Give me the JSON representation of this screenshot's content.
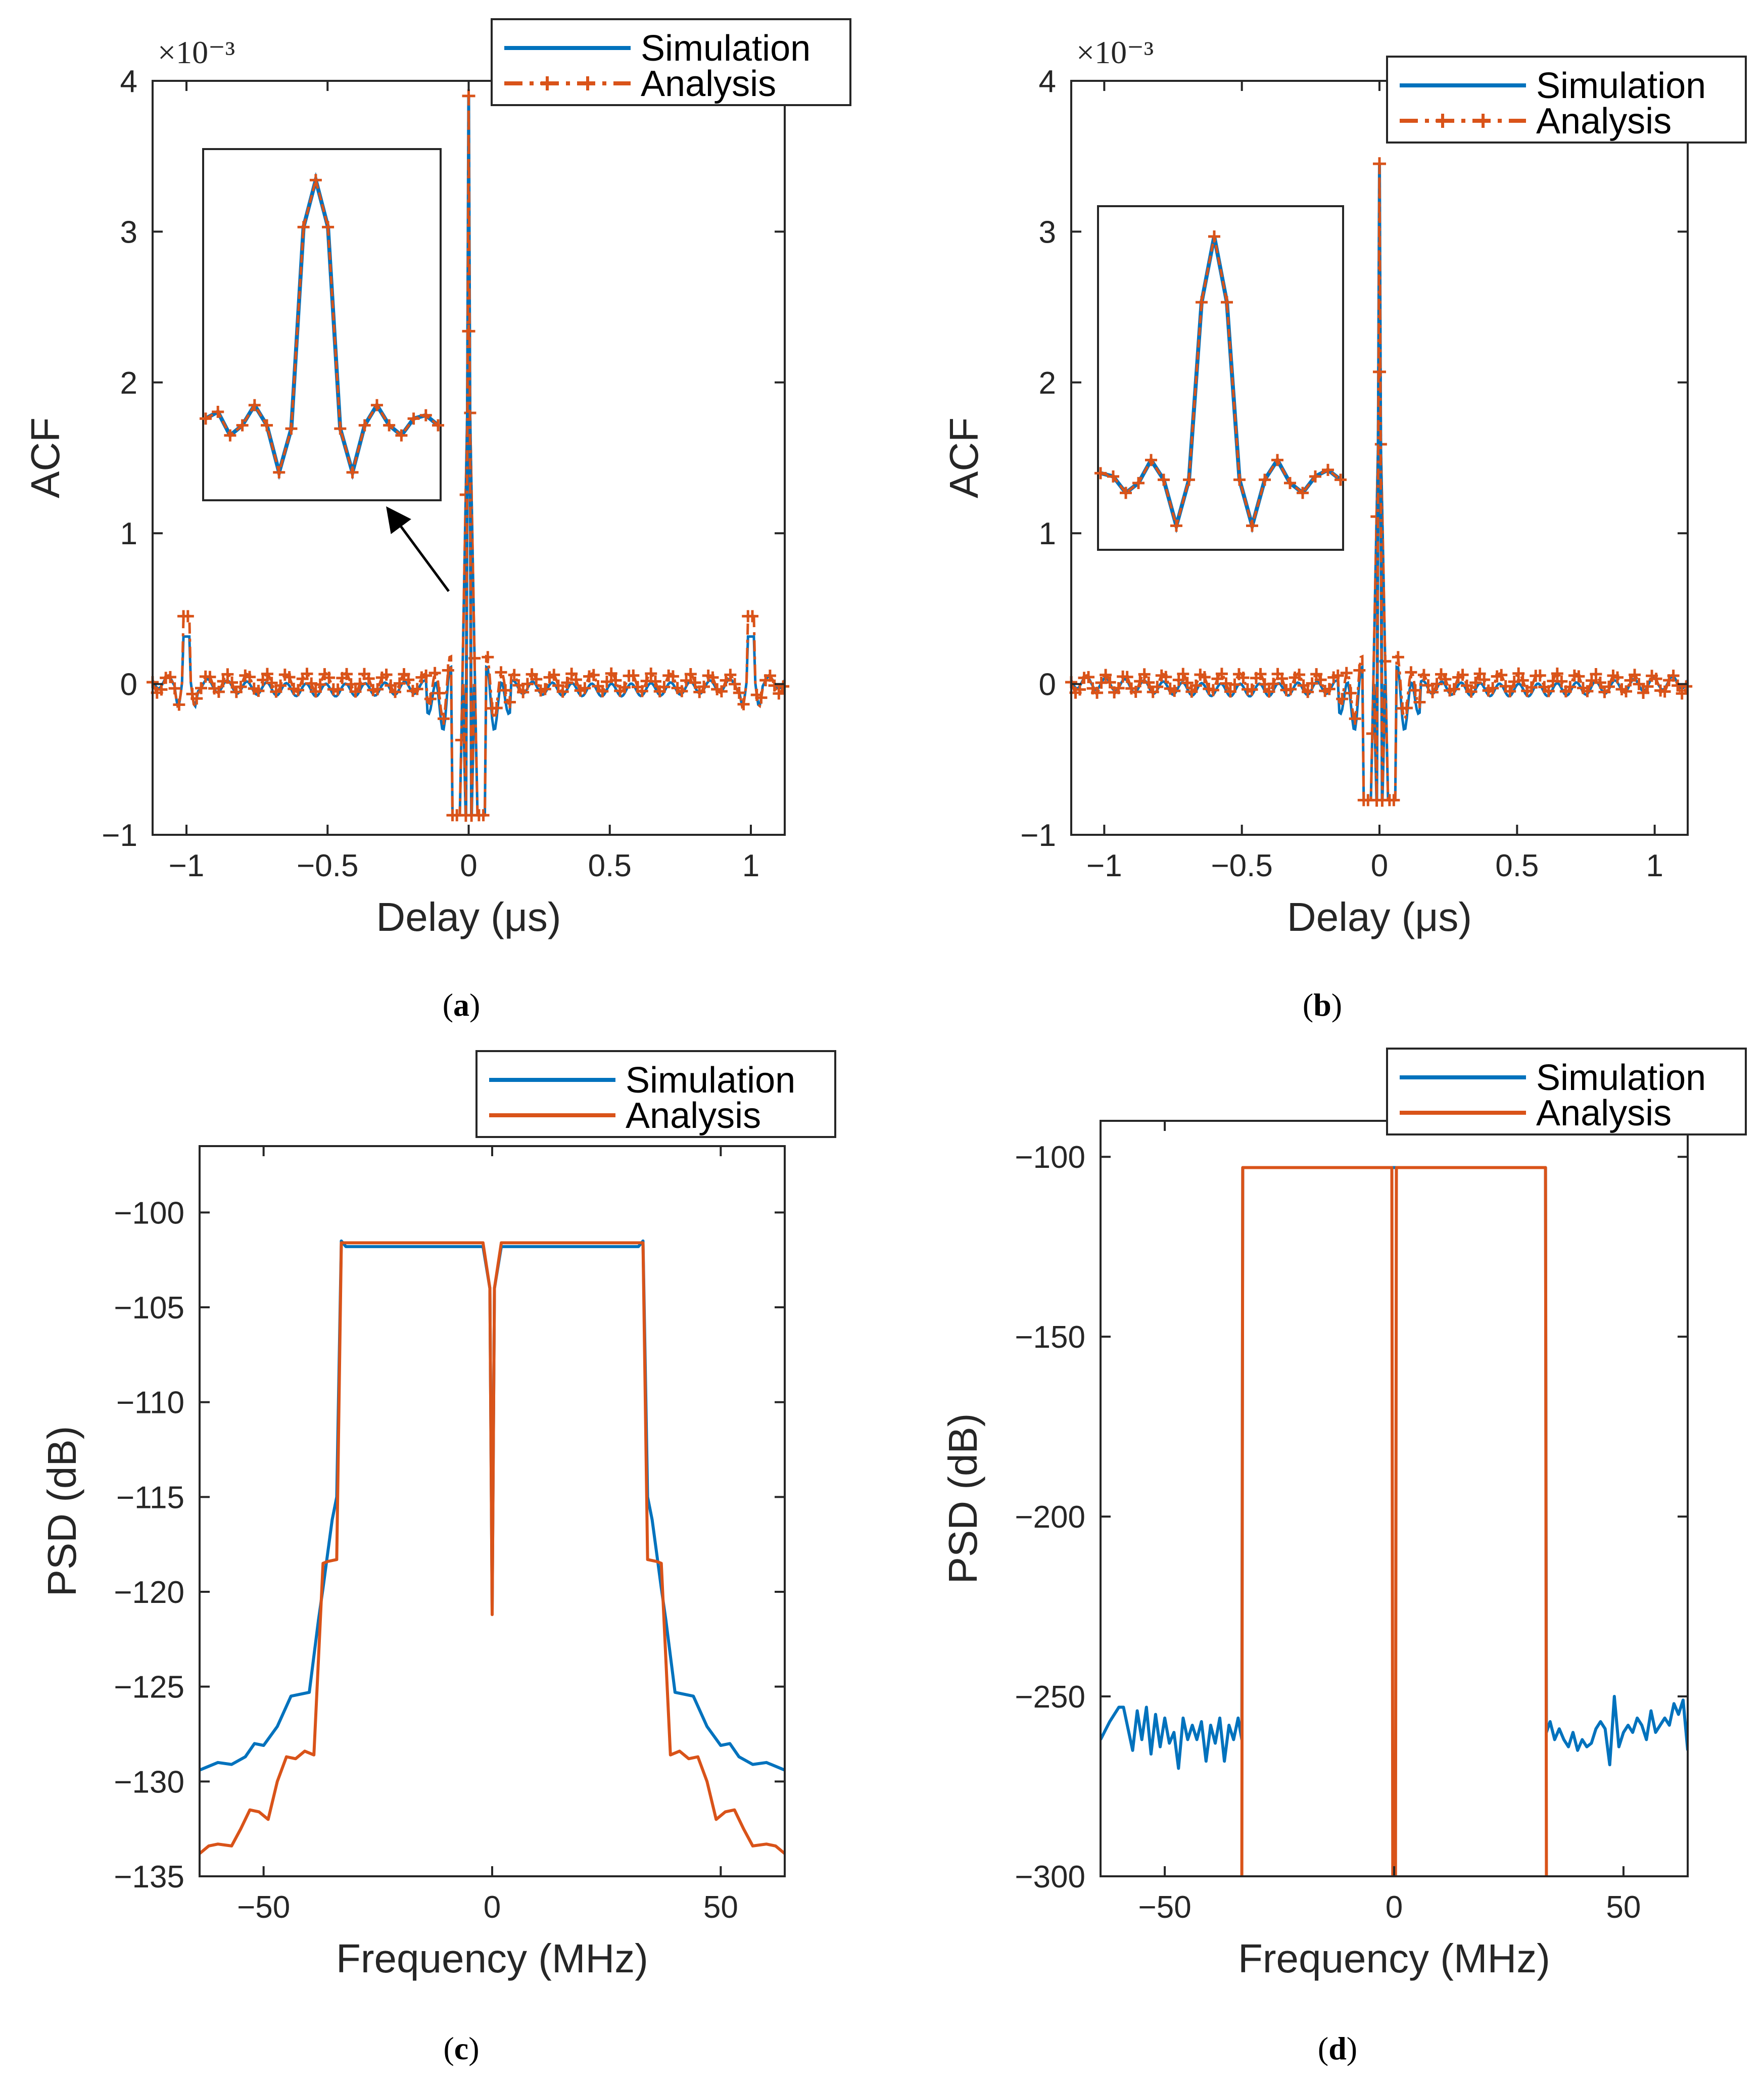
{
  "chart_data": [
    {
      "id": "a",
      "type": "line",
      "panel_label": "a",
      "xlabel": "Delay (μs)",
      "ylabel": "ACF",
      "y_exponent": "×10⁻³",
      "xlim": [
        -1.12,
        1.12
      ],
      "ylim": [
        -1,
        4
      ],
      "xticks": [
        -1,
        -0.5,
        0,
        0.5,
        1
      ],
      "xtick_labels": [
        "−1",
        "−0.5",
        "0",
        "0.5",
        "1"
      ],
      "yticks": [
        -1,
        0,
        1,
        2,
        3,
        4
      ],
      "ytick_labels": [
        "−1",
        "0",
        "1",
        "2",
        "3",
        "4"
      ],
      "legend": [
        "Simulation",
        "Analysis"
      ],
      "legend_position": "top-right",
      "main_peak": 3.9,
      "side_peak": 0.45,
      "side_peak_positions": [
        -1,
        1
      ],
      "first_null": -0.87,
      "inset_values": [
        0.45,
        0.55,
        0.2,
        0.35,
        0.65,
        0.35,
        -0.35,
        0.3,
        3.3,
        4.0,
        3.3,
        0.3,
        -0.35,
        0.35,
        0.65,
        0.35,
        0.2,
        0.45,
        0.5,
        0.35
      ],
      "series": [
        {
          "name": "Simulation",
          "color": "#0072BD",
          "style": "solid"
        },
        {
          "name": "Analysis",
          "color": "#D95319",
          "style": "dash-dot with + markers"
        }
      ]
    },
    {
      "id": "b",
      "type": "line",
      "panel_label": "b",
      "xlabel": "Delay (μs)",
      "ylabel": "ACF",
      "y_exponent": "×10⁻³",
      "xlim": [
        -1.12,
        1.12
      ],
      "ylim": [
        -1,
        4
      ],
      "xticks": [
        -1,
        -0.5,
        0,
        0.5,
        1
      ],
      "xtick_labels": [
        "−1",
        "−0.5",
        "0",
        "0.5",
        "1"
      ],
      "yticks": [
        -1,
        0,
        1,
        2,
        3,
        4
      ],
      "ytick_labels": [
        "−1",
        "0",
        "1",
        "2",
        "3",
        "4"
      ],
      "legend": [
        "Simulation",
        "Analysis"
      ],
      "legend_position": "top-right",
      "main_peak": 3.45,
      "side_peak": 0,
      "side_peak_positions": [],
      "first_null": -0.77,
      "inset_values": [
        0.4,
        0.35,
        0.1,
        0.25,
        0.6,
        0.3,
        -0.4,
        0.3,
        3.0,
        4.0,
        3.0,
        0.3,
        -0.4,
        0.3,
        0.6,
        0.25,
        0.1,
        0.35,
        0.45,
        0.3
      ],
      "series": [
        {
          "name": "Simulation",
          "color": "#0072BD",
          "style": "solid"
        },
        {
          "name": "Analysis",
          "color": "#D95319",
          "style": "dash-dot with + markers"
        }
      ]
    },
    {
      "id": "c",
      "type": "line",
      "panel_label": "c",
      "xlabel": "Frequency (MHz)",
      "ylabel": "PSD (dB)",
      "xlim": [
        -64,
        64
      ],
      "ylim": [
        -135,
        -96.5
      ],
      "xticks": [
        -50,
        0,
        50
      ],
      "xtick_labels": [
        "−50",
        "0",
        "50"
      ],
      "yticks": [
        -135,
        -130,
        -125,
        -120,
        -115,
        -110,
        -105,
        -100
      ],
      "ytick_labels": [
        "−135",
        "−130",
        "−125",
        "−120",
        "−115",
        "−110",
        "−105",
        "−100"
      ],
      "legend": [
        "Simulation",
        "Analysis"
      ],
      "legend_position": "top-right",
      "series": [
        {
          "name": "Simulation",
          "color": "#0072BD",
          "x": [
            -64,
            -60,
            -57,
            -54,
            -52,
            -50,
            -47,
            -44,
            -42,
            -40,
            -38,
            -37,
            -36,
            -35,
            -34,
            -33,
            -32,
            -20,
            -2,
            -0.5,
            0,
            0.5,
            2,
            20,
            32,
            33,
            34,
            35,
            36,
            37,
            38,
            40,
            42,
            44,
            47,
            50,
            52,
            54,
            57,
            60,
            64
          ],
          "y": [
            -129.4,
            -129.0,
            -129.1,
            -128.7,
            -128.0,
            -128.1,
            -127.1,
            -125.5,
            -125.4,
            -125.3,
            -121.5,
            -119.8,
            -118.0,
            -116.2,
            -115.0,
            -101.5,
            -101.8,
            -101.8,
            -101.8,
            -104,
            -121,
            -104,
            -101.8,
            -101.8,
            -101.8,
            -101.5,
            -115.0,
            -116.2,
            -118.0,
            -119.8,
            -121.5,
            -125.3,
            -125.4,
            -125.5,
            -127.1,
            -128.1,
            -128.0,
            -128.7,
            -129.1,
            -129.0,
            -129.4
          ]
        },
        {
          "name": "Analysis",
          "color": "#D95319",
          "x": [
            -64,
            -62,
            -60,
            -57,
            -55,
            -53,
            -51,
            -49,
            -47,
            -45,
            -43,
            -41,
            -39,
            -37,
            -36,
            -34,
            -33,
            -32,
            -20,
            -2,
            -0.5,
            0,
            0.5,
            2,
            20,
            32,
            33,
            34,
            36,
            37,
            39,
            41,
            43,
            45,
            47,
            49,
            51,
            53,
            55,
            57,
            60,
            62,
            64
          ],
          "y": [
            -133.8,
            -133.4,
            -133.3,
            -133.4,
            -132.5,
            -131.5,
            -131.6,
            -132.0,
            -130.0,
            -128.7,
            -128.8,
            -128.4,
            -128.6,
            -118.5,
            -118.4,
            -118.3,
            -101.6,
            -101.6,
            -101.6,
            -101.6,
            -104,
            -121.2,
            -104,
            -101.6,
            -101.6,
            -101.6,
            -101.6,
            -118.3,
            -118.4,
            -118.5,
            -128.6,
            -128.4,
            -128.8,
            -128.7,
            -130.0,
            -132.0,
            -131.6,
            -131.5,
            -132.5,
            -133.4,
            -133.3,
            -133.4,
            -133.8
          ]
        }
      ]
    },
    {
      "id": "d",
      "type": "line",
      "panel_label": "d",
      "xlabel": "Frequency (MHz)",
      "ylabel": "PSD (dB)",
      "xlim": [
        -64,
        64
      ],
      "ylim": [
        -300,
        -90
      ],
      "xticks": [
        -50,
        0,
        50
      ],
      "xtick_labels": [
        "−50",
        "0",
        "50"
      ],
      "yticks": [
        -300,
        -250,
        -200,
        -150,
        -100
      ],
      "ytick_labels": [
        "−300",
        "−250",
        "−200",
        "−150",
        "−100"
      ],
      "legend": [
        "Simulation",
        "Analysis"
      ],
      "legend_position": "top-right",
      "series": [
        {
          "name": "Simulation",
          "color": "#0072BD",
          "x": [
            -64,
            -62,
            -60,
            -59,
            -57,
            -56,
            -55,
            -54,
            -53,
            -52,
            -51,
            -50,
            -49,
            -48,
            -47,
            -46,
            -45,
            -44,
            -43,
            -42,
            -41,
            -40,
            -39,
            -38,
            -37,
            -36,
            -35,
            -34,
            -33.2,
            -33,
            33,
            33.2,
            34,
            35,
            36,
            37,
            38,
            39,
            40,
            41,
            42,
            43,
            44,
            45,
            46,
            47,
            48,
            49,
            50,
            51,
            52,
            53,
            54,
            55,
            56,
            57,
            58,
            59,
            60,
            61,
            62,
            63,
            64
          ],
          "y": [
            -262,
            -257,
            -253,
            -253,
            -265,
            -254,
            -262,
            -253,
            -266,
            -255,
            -264,
            -256,
            -263,
            -260,
            -270,
            -256,
            -262,
            -258,
            -262,
            -257,
            -268,
            -258,
            -263,
            -256,
            -268,
            -258,
            -262,
            -256,
            -262,
            -103,
            -103,
            -260,
            -257,
            -262,
            -259,
            -262,
            -264,
            -260,
            -265,
            -262,
            -264,
            -263,
            -259,
            -257,
            -259,
            -269,
            -250,
            -264,
            -260,
            -258,
            -260,
            -256,
            -258,
            -262,
            -254,
            -260,
            -258,
            -256,
            -258,
            -252,
            -255,
            -251,
            -265
          ]
        },
        {
          "name": "Analysis",
          "color": "#D95319",
          "x": [
            -33.2,
            -33,
            -1,
            -0.5,
            -0.3,
            0.3,
            0.5,
            1,
            33,
            33.2
          ],
          "y": [
            -300,
            -103,
            -103,
            -103,
            -300,
            -300,
            -103,
            -103,
            -103,
            -300
          ]
        }
      ]
    }
  ]
}
